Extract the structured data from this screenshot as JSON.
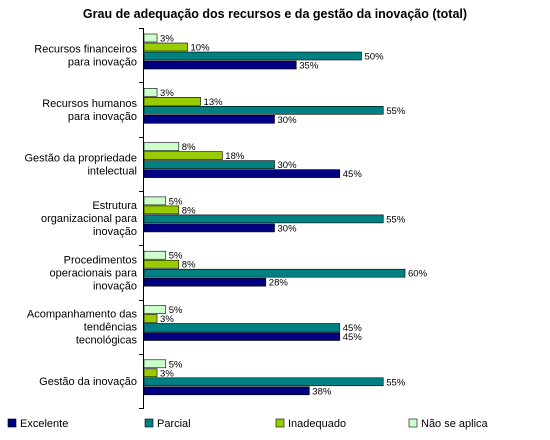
{
  "chart_data": {
    "type": "bar",
    "orientation": "horizontal",
    "title": "Grau de adequação dos recursos e da gestão da inovação (total)",
    "xlabel": "",
    "ylabel": "",
    "xlim": [
      0,
      65
    ],
    "grid": false,
    "legend_position": "bottom",
    "categories": [
      [
        "Recursos financeiros",
        "para inovação"
      ],
      [
        "Recursos humanos",
        "para inovação"
      ],
      [
        "Gestão da propriedade",
        "intelectual"
      ],
      [
        "Estrutura",
        "organizacional para",
        "inovação"
      ],
      [
        "Procedimentos",
        "operacionais para",
        "inovação"
      ],
      [
        "Acompanhamento das",
        "tendências",
        "tecnológicas"
      ],
      [
        "Gestão da inovação"
      ]
    ],
    "series": [
      {
        "name": "Não se aplica",
        "color": "#ccffcc",
        "values": [
          3,
          3,
          8,
          5,
          5,
          5,
          5
        ]
      },
      {
        "name": "Inadequado",
        "color": "#99cc00",
        "values": [
          10,
          13,
          18,
          8,
          8,
          3,
          3
        ]
      },
      {
        "name": "Parcial",
        "color": "#008080",
        "values": [
          50,
          55,
          30,
          55,
          60,
          45,
          55
        ]
      },
      {
        "name": "Excelente",
        "color": "#000080",
        "values": [
          35,
          30,
          45,
          30,
          28,
          45,
          38
        ]
      }
    ],
    "value_suffix": "%",
    "legend_order": [
      "Excelente",
      "Parcial",
      "Inadequado",
      "Não se aplica"
    ]
  }
}
